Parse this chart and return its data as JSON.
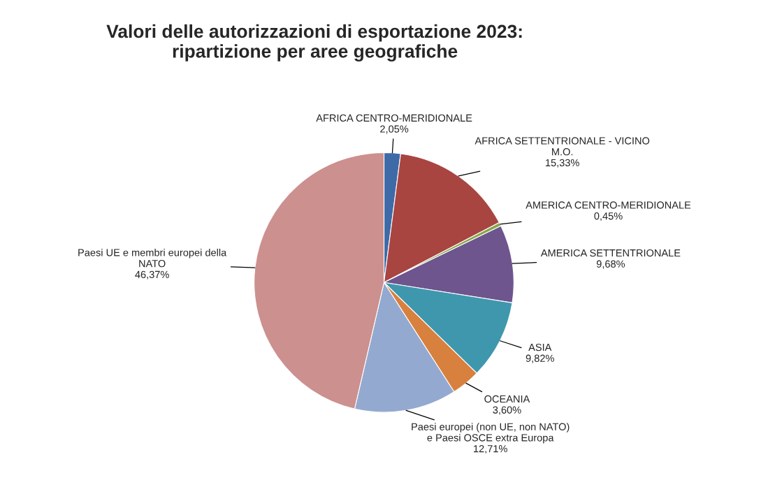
{
  "chart_data": {
    "type": "pie",
    "title": "Valori delle autorizzazioni di esportazione 2023:\nripartizione per aree geografiche",
    "categories": [
      "AFRICA CENTRO-MERIDIONALE",
      "AFRICA SETTENTRIONALE - VICINO M.O.",
      "AMERICA CENTRO-MERIDIONALE",
      "AMERICA SETTENTRIONALE",
      "ASIA",
      "OCEANIA",
      "Paesi europei (non UE, non NATO) e Paesi OSCE extra Europa",
      "Paesi UE e membri europei della NATO"
    ],
    "values": [
      2.05,
      15.33,
      0.45,
      9.68,
      9.82,
      3.6,
      12.71,
      46.37
    ],
    "value_labels": [
      "2,05%",
      "15,33%",
      "0,45%",
      "9,68%",
      "9,82%",
      "3,60%",
      "12,71%",
      "46,37%"
    ],
    "colors": [
      "#3f6aa8",
      "#a84541",
      "#88a84a",
      "#6e558e",
      "#3f97ad",
      "#d8803e",
      "#94a9cf",
      "#cc908f"
    ]
  }
}
